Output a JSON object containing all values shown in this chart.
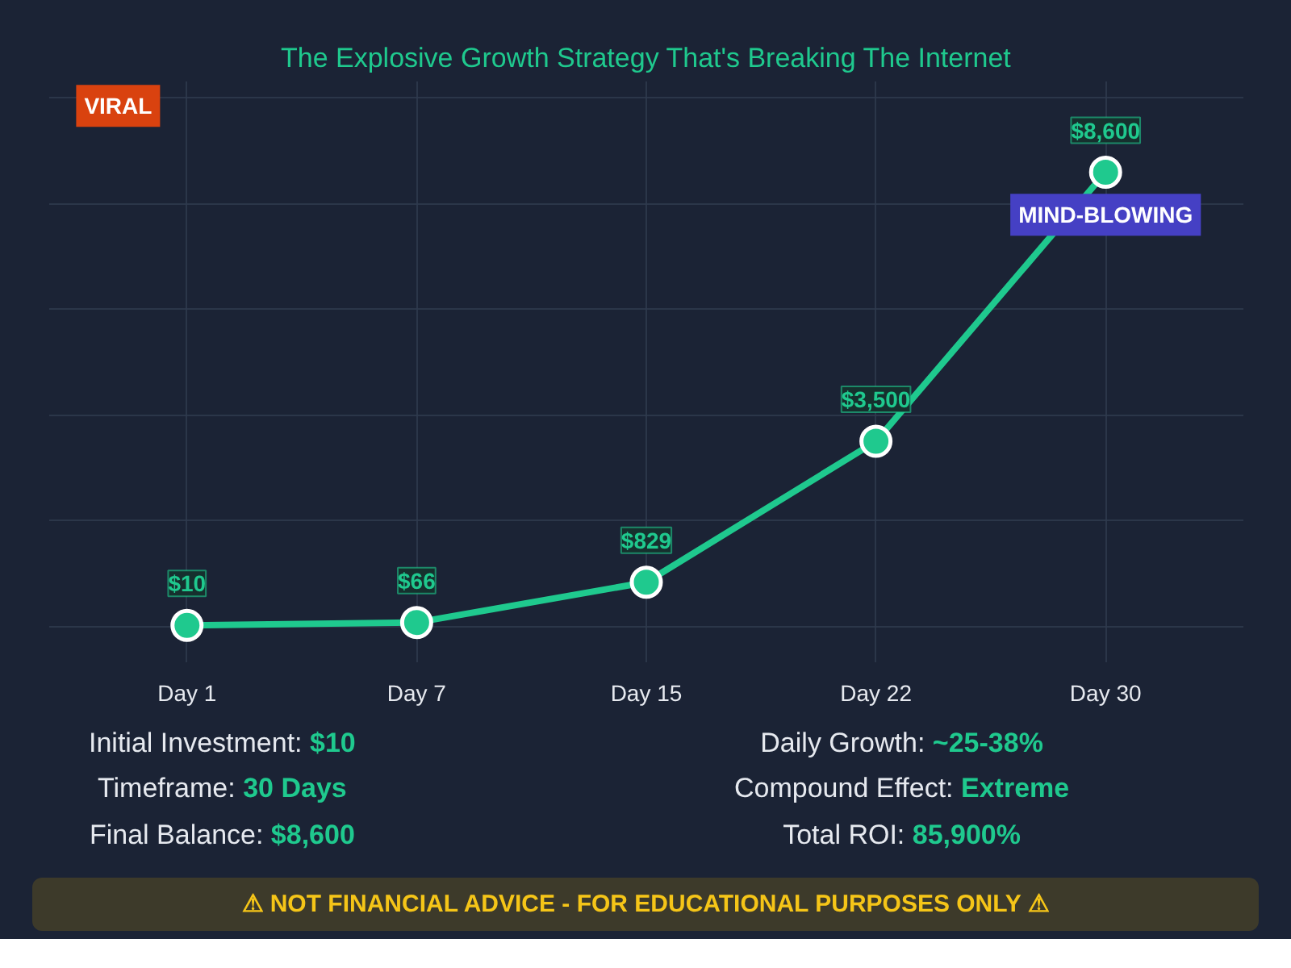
{
  "chart_data": {
    "type": "line",
    "title": "The Explosive Growth Strategy That's Breaking The Internet",
    "categories": [
      "Day 1",
      "Day 7",
      "Day 15",
      "Day 22",
      "Day 30"
    ],
    "series": [
      {
        "color": "#1fc98e",
        "values": [
          10,
          66,
          829,
          3500,
          8600
        ],
        "value_labels": [
          "$10",
          "$66",
          "$829",
          "$3,500",
          "$8,600"
        ]
      }
    ],
    "marker": "circle",
    "line_style": "solid",
    "grid": true,
    "tick_labels": "x",
    "annotations": [
      "VIRAL",
      "MIND-BLOWING",
      "Initial Investment: $10",
      "Timeframe: 30 Days",
      "Final Balance: $8,600",
      "Daily Growth: ~25-38%",
      "Compound Effect: Extreme",
      "Total ROI: 85,900%",
      "⚠ NOT FINANCIAL ADVICE - FOR EDUCATIONAL PURPOSES ONLY ⚠"
    ]
  }
}
